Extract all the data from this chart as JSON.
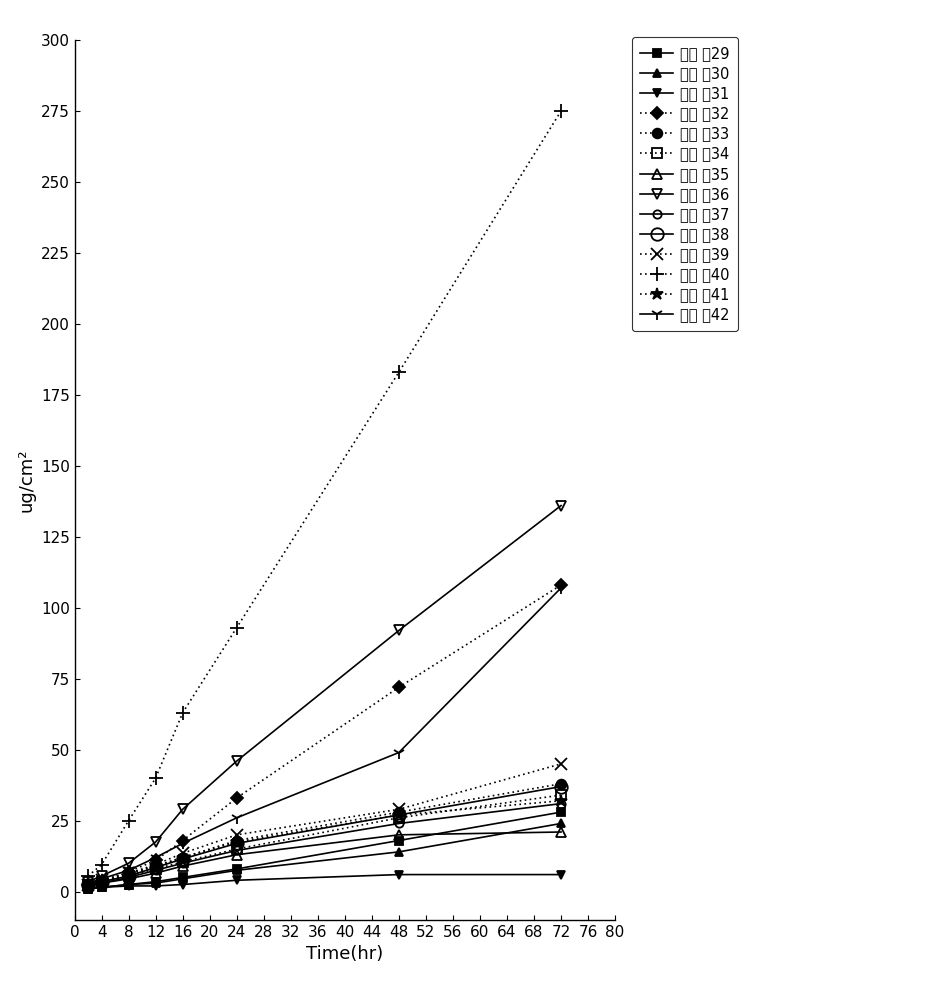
{
  "xlabel": "Time(hr)",
  "ylabel": "ug/cm²",
  "xlim": [
    0,
    80
  ],
  "ylim": [
    -10,
    300
  ],
  "xticks": [
    0,
    4,
    8,
    12,
    16,
    20,
    24,
    28,
    32,
    36,
    40,
    44,
    48,
    52,
    56,
    60,
    64,
    68,
    72,
    76,
    80
  ],
  "yticks": [
    0,
    25,
    50,
    75,
    100,
    125,
    150,
    175,
    200,
    225,
    250,
    275,
    300
  ],
  "series": [
    {
      "label": "实施 例29",
      "x": [
        2,
        4,
        8,
        12,
        16,
        24,
        48,
        72
      ],
      "y": [
        1.0,
        1.5,
        2.5,
        3.5,
        5.0,
        8.0,
        18.0,
        28.0
      ],
      "marker": "s",
      "linestyle": "solid",
      "fillstyle": "full",
      "markersize": 6
    },
    {
      "label": "实施 例30",
      "x": [
        2,
        4,
        8,
        12,
        16,
        24,
        48,
        72
      ],
      "y": [
        1.0,
        1.5,
        2.5,
        3.0,
        4.5,
        7.5,
        14.0,
        24.0
      ],
      "marker": "^",
      "linestyle": "solid",
      "fillstyle": "full",
      "markersize": 6
    },
    {
      "label": "实施 例31",
      "x": [
        2,
        4,
        8,
        12,
        16,
        24,
        48,
        72
      ],
      "y": [
        1.5,
        1.5,
        2.0,
        2.0,
        2.5,
        4.0,
        6.0,
        6.0
      ],
      "marker": "v",
      "linestyle": "solid",
      "fillstyle": "full",
      "markersize": 6
    },
    {
      "label": "实施 例32",
      "x": [
        2,
        4,
        8,
        12,
        16,
        24,
        48,
        72
      ],
      "y": [
        2.5,
        3.5,
        7.0,
        11.0,
        18.0,
        33.0,
        72.0,
        108.0
      ],
      "marker": "D",
      "linestyle": "dotted",
      "fillstyle": "full",
      "markersize": 6
    },
    {
      "label": "实施 例33",
      "x": [
        2,
        4,
        8,
        12,
        16,
        24,
        48,
        72
      ],
      "y": [
        2.5,
        3.5,
        6.0,
        9.0,
        12.0,
        18.0,
        28.0,
        38.0
      ],
      "marker": "o",
      "linestyle": "dotted",
      "fillstyle": "full",
      "markersize": 7
    },
    {
      "label": "实施 例34",
      "x": [
        2,
        4,
        8,
        12,
        16,
        24,
        48,
        72
      ],
      "y": [
        2.5,
        3.5,
        5.5,
        8.0,
        10.5,
        15.0,
        26.0,
        34.0
      ],
      "marker": "s",
      "linestyle": "dotted",
      "fillstyle": "none",
      "markersize": 7
    },
    {
      "label": "实施 例35",
      "x": [
        2,
        4,
        8,
        12,
        16,
        24,
        48,
        72
      ],
      "y": [
        2.0,
        3.0,
        4.5,
        6.5,
        9.0,
        13.0,
        20.0,
        21.0
      ],
      "marker": "^",
      "linestyle": "solid",
      "fillstyle": "none",
      "markersize": 7
    },
    {
      "label": "实施 例36",
      "x": [
        2,
        4,
        8,
        12,
        16,
        24,
        48,
        72
      ],
      "y": [
        3.5,
        5.5,
        10.0,
        17.5,
        29.0,
        46.0,
        92.0,
        136.0
      ],
      "marker": "v",
      "linestyle": "solid",
      "fillstyle": "none",
      "markersize": 7
    },
    {
      "label": "实施 例37",
      "x": [
        2,
        4,
        8,
        12,
        16,
        24,
        48,
        72
      ],
      "y": [
        2.0,
        3.0,
        5.0,
        7.5,
        10.0,
        14.5,
        24.0,
        31.0
      ],
      "marker": "o",
      "linestyle": "solid",
      "fillstyle": "none",
      "markersize": 6,
      "small_open": true
    },
    {
      "label": "实施 例38",
      "x": [
        2,
        4,
        8,
        12,
        16,
        24,
        48,
        72
      ],
      "y": [
        2.5,
        3.5,
        5.5,
        8.5,
        11.5,
        17.0,
        27.0,
        37.0
      ],
      "marker": "o",
      "linestyle": "solid",
      "fillstyle": "none",
      "markersize": 9
    },
    {
      "label": "实施 例39",
      "x": [
        2,
        4,
        8,
        12,
        16,
        24,
        48,
        72
      ],
      "y": [
        2.5,
        4.0,
        6.5,
        9.5,
        13.5,
        20.0,
        29.0,
        45.0
      ],
      "marker": "x",
      "linestyle": "dotted",
      "fillstyle": "full",
      "markersize": 8
    },
    {
      "label": "实施 例40",
      "x": [
        2,
        4,
        8,
        12,
        16,
        24,
        48,
        72
      ],
      "y": [
        5.5,
        9.5,
        25.0,
        40.0,
        63.0,
        93.0,
        183.0,
        275.0
      ],
      "marker": "+",
      "linestyle": "dotted",
      "fillstyle": "full",
      "markersize": 10
    },
    {
      "label": "实施 例41",
      "x": [
        2,
        4,
        8,
        12,
        16,
        24,
        48,
        72
      ],
      "y": [
        2.5,
        4.0,
        6.5,
        9.0,
        12.0,
        17.5,
        27.0,
        32.0
      ],
      "marker": "*",
      "linestyle": "dotted",
      "fillstyle": "full",
      "markersize": 9
    },
    {
      "label": "实施 例42",
      "x": [
        2,
        4,
        8,
        12,
        16,
        24,
        48,
        72
      ],
      "y": [
        3.0,
        4.5,
        7.5,
        12.0,
        17.0,
        26.0,
        49.0,
        107.0
      ],
      "marker": "1",
      "linestyle": "solid",
      "fillstyle": "full",
      "markersize": 9
    }
  ]
}
